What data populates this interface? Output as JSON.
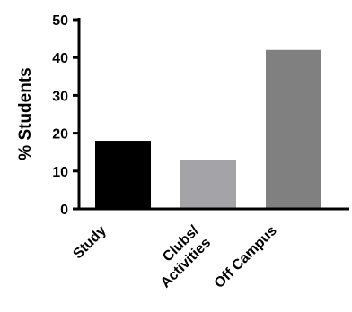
{
  "chart_data": {
    "type": "bar",
    "categories": [
      "Study",
      "Clubs/ Activities",
      "Off Campus"
    ],
    "category_lines": [
      [
        "Study"
      ],
      [
        "Clubs/",
        "Activities"
      ],
      [
        "Off Campus"
      ]
    ],
    "values": [
      18,
      13,
      42
    ],
    "bar_colors": [
      "#000000",
      "#a3a3a8",
      "#808080"
    ],
    "ylabel": "% Students",
    "xlabel": "",
    "title": "",
    "ylim": [
      0,
      50
    ],
    "yticks": [
      0,
      10,
      20,
      30,
      40,
      50
    ],
    "grid": false,
    "legend": "none"
  }
}
